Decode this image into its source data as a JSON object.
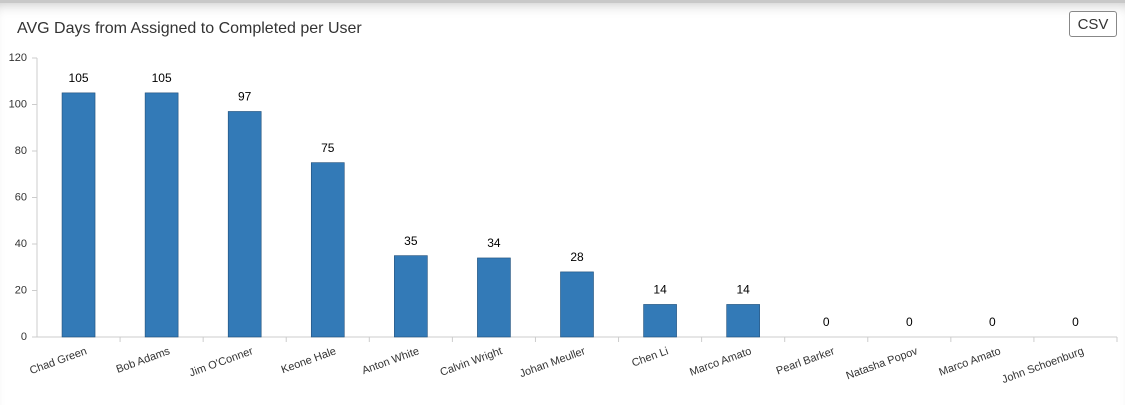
{
  "chart_data": {
    "type": "bar",
    "title": "AVG Days from Assigned to Completed per User",
    "categories": [
      "Chad Green",
      "Bob Adams",
      "Jim O'Conner",
      "Keone Hale",
      "Anton White",
      "Calvin Wright",
      "Johan Meuller",
      "Chen Li",
      "Marco Amato",
      "Pearl Barker",
      "Natasha Popov",
      "Marco Amato",
      "John Schoenburg"
    ],
    "values": [
      105,
      105,
      97,
      75,
      35,
      34,
      28,
      14,
      14,
      0,
      0,
      0,
      0
    ],
    "color": "#337ab7",
    "ylim": [
      0,
      120
    ],
    "yticks": [
      0,
      20,
      40,
      60,
      80,
      100,
      120
    ],
    "grid": false
  },
  "toolbar": {
    "export_button": "CSV"
  }
}
